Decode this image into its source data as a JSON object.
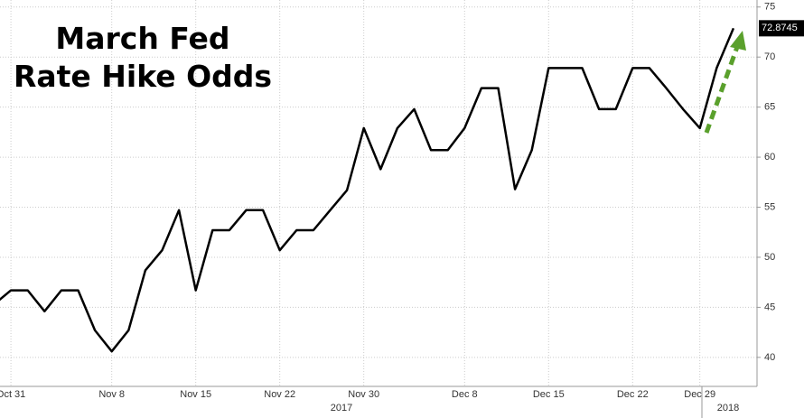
{
  "chart_data": {
    "type": "line",
    "title": [
      "March Fed",
      "Rate Hike Odds"
    ],
    "categories": [
      null,
      "Oct 31",
      null,
      null,
      null,
      null,
      null,
      "Nov 8",
      null,
      null,
      null,
      null,
      "Nov 15",
      null,
      null,
      null,
      null,
      "Nov 22",
      null,
      null,
      null,
      null,
      "Nov 30",
      null,
      null,
      null,
      null,
      null,
      "Dec 8",
      null,
      null,
      null,
      null,
      "Dec 15",
      null,
      null,
      null,
      null,
      "Dec 22",
      null,
      null,
      null,
      "Dec 29",
      null,
      null
    ],
    "series": [
      {
        "name": "March Fed Rate Hike Odds",
        "color": "#000000",
        "values": [
          45.3,
          46.7,
          46.7,
          44.6,
          46.7,
          46.7,
          42.7,
          40.6,
          42.7,
          48.7,
          50.7,
          54.7,
          46.7,
          52.7,
          52.7,
          54.7,
          54.7,
          50.7,
          52.7,
          52.7,
          54.7,
          56.7,
          62.9,
          58.8,
          62.9,
          64.8,
          60.7,
          60.7,
          62.9,
          66.9,
          66.9,
          56.8,
          60.7,
          68.9,
          68.9,
          68.9,
          64.8,
          64.8,
          68.9,
          68.9,
          66.9,
          64.8,
          62.9,
          68.9,
          72.8745
        ]
      }
    ],
    "annotations": [
      "2017",
      "2018"
    ],
    "ylim": [
      37.1,
      75.7
    ],
    "yticks": [
      40,
      45,
      50,
      55,
      60,
      65,
      70,
      75
    ],
    "grid": true
  }
}
